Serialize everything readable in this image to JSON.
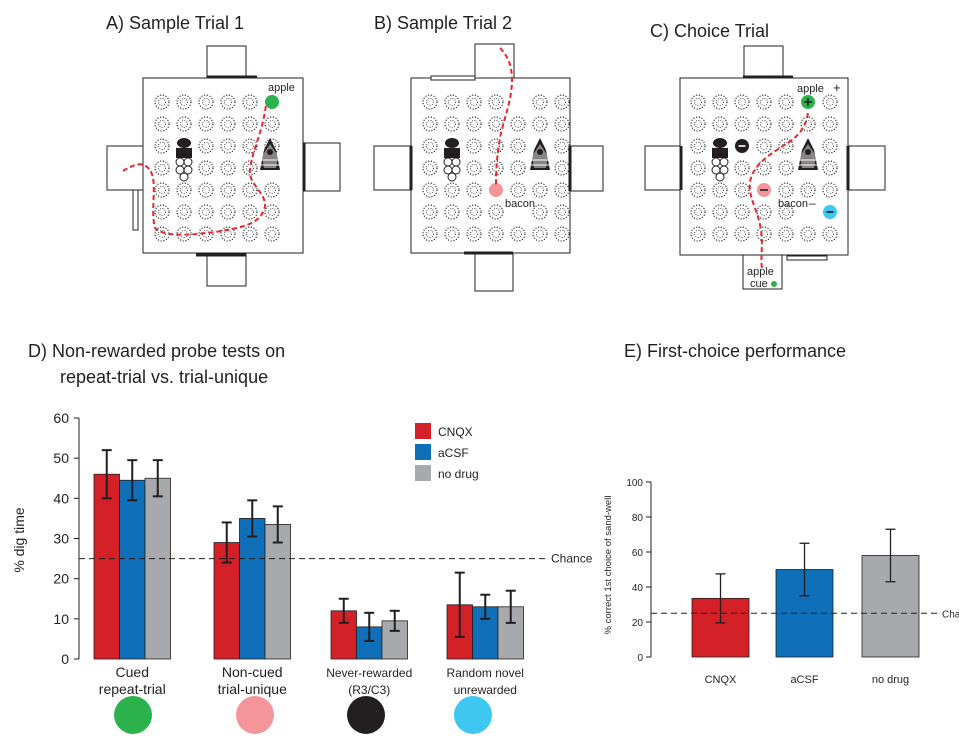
{
  "colors": {
    "cnqx": "#d42027",
    "acsf": "#0f6fb8",
    "no_drug": "#a7a9ac",
    "apple": "#2bb24c",
    "bacon": "#f4959b",
    "never": "#231f20",
    "novel": "#3ec7f1",
    "path": "#e8262d"
  },
  "panels": {
    "a": {
      "title": "A) Sample  Trial 1",
      "apple": "apple"
    },
    "b": {
      "title": "B)  Sample Trial 2",
      "bacon": "bacon"
    },
    "c": {
      "title": "C) Choice Trial",
      "apple": "apple",
      "plus": "+",
      "bacon": "bacon",
      "minus": "–",
      "cue_line1": "apple",
      "cue_line2": "cue"
    },
    "d": {
      "title_line1": "D)  Non-rewarded probe tests on",
      "title_line2": "repeat-trial vs. trial-unique"
    },
    "e": {
      "title": "E)  First-choice performance"
    }
  },
  "chart_data": [
    {
      "type": "bar",
      "panel": "D",
      "ylabel": "% dig time",
      "ylim": [
        0,
        60
      ],
      "yticks": [
        "0",
        "10",
        "20",
        "30",
        "40",
        "50",
        "60"
      ],
      "categories": [
        "Cued\nrepeat-trial",
        "Non-cued\ntrial-unique",
        "Never-rewarded\n(R3/C3)",
        "Random novel\nunrewarded"
      ],
      "category_lines": [
        [
          "Cued",
          "repeat-trial"
        ],
        [
          "Non-cued",
          "trial-unique"
        ],
        [
          "Never-rewarded",
          "(R3/C3)"
        ],
        [
          "Random novel",
          "unrewarded"
        ]
      ],
      "series": [
        {
          "name": "CNQX",
          "values": [
            46,
            29,
            12,
            13.5
          ],
          "errors": [
            6,
            5,
            3,
            8
          ]
        },
        {
          "name": "aCSF",
          "values": [
            44.5,
            35,
            8,
            13
          ],
          "errors": [
            5,
            4.5,
            3.5,
            3
          ]
        },
        {
          "name": "no drug",
          "values": [
            45,
            33.5,
            9.5,
            13
          ],
          "errors": [
            4.5,
            4.5,
            2.5,
            4
          ]
        }
      ],
      "chance": {
        "value": 25,
        "label": "Chance"
      },
      "legend": "top-right"
    },
    {
      "type": "bar",
      "panel": "E",
      "ylabel": "% correct 1st choice of sand-well",
      "ylim": [
        0,
        100
      ],
      "yticks": [
        "0",
        "20",
        "40",
        "60",
        "80",
        "100"
      ],
      "categories": [
        "CNQX",
        "aCSF",
        "no drug"
      ],
      "values": [
        33.5,
        50,
        58
      ],
      "errors": [
        14,
        15,
        15
      ],
      "chance": {
        "value": 25,
        "label": "Chance"
      }
    }
  ]
}
